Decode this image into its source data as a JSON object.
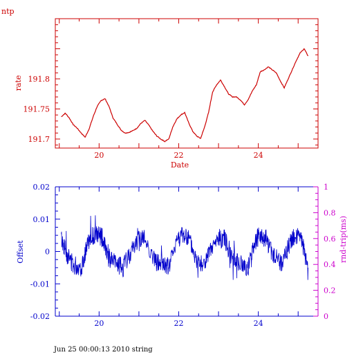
{
  "page": {
    "label": "ntp",
    "footer": "Jun 25 00:00:13 2010 string"
  },
  "colors": {
    "rate": "#cc0000",
    "offset": "#0000cc",
    "rtt": "#cc00cc",
    "text": "#000000"
  },
  "chart_data": [
    {
      "type": "line",
      "title": "ntp",
      "xlabel": "Date",
      "ylabel": "rate",
      "xlim": [
        18.9,
        25.5
      ],
      "ylim": [
        191.685,
        191.9
      ],
      "xticks": [
        "20",
        "22",
        "24"
      ],
      "xtick_values": [
        20,
        22,
        24
      ],
      "yticks": [
        "191.7",
        "191.75",
        "191.8"
      ],
      "ytick_values": [
        191.7,
        191.75,
        191.8
      ],
      "series": [
        {
          "x": [
            19.05,
            19.15,
            19.25,
            19.35,
            19.45,
            19.55,
            19.65,
            19.75,
            19.85,
            19.95,
            20.05,
            20.15,
            20.25,
            20.35,
            20.45,
            20.55,
            20.65,
            20.75,
            20.85,
            20.95,
            21.05,
            21.15,
            21.25,
            21.35,
            21.45,
            21.55,
            21.65,
            21.75,
            21.85,
            21.95,
            22.05,
            22.15,
            22.25,
            22.35,
            22.45,
            22.55,
            22.65,
            22.75,
            22.85,
            22.95,
            23.05,
            23.15,
            23.25,
            23.35,
            23.45,
            23.55,
            23.65,
            23.75,
            23.85,
            23.95,
            24.05,
            24.15,
            24.25,
            24.35,
            24.45,
            24.55,
            24.65,
            24.75,
            24.85,
            24.95,
            25.05,
            25.15,
            25.25
          ],
          "values": [
            191.737,
            191.743,
            191.735,
            191.724,
            191.718,
            191.71,
            191.703,
            191.717,
            191.737,
            191.754,
            191.764,
            191.767,
            191.754,
            191.735,
            191.725,
            191.715,
            191.71,
            191.711,
            191.714,
            191.718,
            191.726,
            191.731,
            191.723,
            191.713,
            191.705,
            191.7,
            191.696,
            191.7,
            191.72,
            191.733,
            191.74,
            191.744,
            191.727,
            191.713,
            191.705,
            191.701,
            191.72,
            191.744,
            191.778,
            191.79,
            191.798,
            191.787,
            191.775,
            191.77,
            191.77,
            191.765,
            191.757,
            191.766,
            191.78,
            191.79,
            191.812,
            191.815,
            191.82,
            191.815,
            191.81,
            191.797,
            191.785,
            191.8,
            191.815,
            191.83,
            191.843,
            191.85,
            191.838
          ]
        }
      ]
    },
    {
      "type": "line",
      "ylabel": "Offset",
      "y2label": "rnd-trip(ms)",
      "xlim": [
        18.9,
        25.5
      ],
      "ylim": [
        -0.02,
        0.02
      ],
      "y2lim": [
        0,
        1
      ],
      "xticks": [
        "20",
        "22",
        "24"
      ],
      "xtick_values": [
        20,
        22,
        24
      ],
      "yticks": [
        "-0.02",
        "-0.01",
        "0",
        "0.01",
        "0.02"
      ],
      "ytick_values": [
        -0.02,
        -0.01,
        0,
        0.01,
        0.02
      ],
      "y2ticks": [
        "0",
        "0.2",
        "0.4",
        "0.6",
        "0.8",
        "1"
      ],
      "y2tick_values": [
        0,
        0.2,
        0.4,
        0.6,
        0.8,
        1
      ],
      "series": [
        {
          "x": [
            19.05,
            19.2,
            19.35,
            19.55,
            19.7,
            19.85,
            20.0,
            20.1,
            20.25,
            20.45,
            20.6,
            20.8,
            21.0,
            21.15,
            21.4,
            21.6,
            21.75,
            21.95,
            22.1,
            22.25,
            22.45,
            22.65,
            22.8,
            23.0,
            23.15,
            23.35,
            23.55,
            23.75,
            23.9,
            24.05,
            24.2,
            24.4,
            24.6,
            24.8,
            24.95,
            25.1,
            25.25
          ],
          "values": [
            0.004,
            -0.001,
            -0.004,
            -0.005,
            0.002,
            0.005,
            0.005,
            0.004,
            -0.002,
            -0.004,
            -0.005,
            0.0,
            0.004,
            0.004,
            -0.003,
            -0.004,
            -0.005,
            0.004,
            0.005,
            0.004,
            -0.003,
            -0.004,
            0.0,
            0.004,
            0.004,
            -0.002,
            -0.004,
            -0.005,
            0.003,
            0.005,
            0.004,
            -0.002,
            -0.004,
            0.003,
            0.005,
            0.003,
            -0.005
          ]
        }
      ]
    }
  ]
}
